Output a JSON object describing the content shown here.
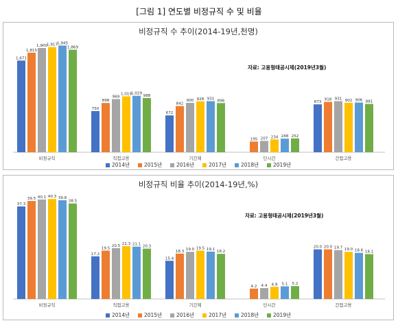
{
  "page": {
    "title": "[그림 1] 연도별 비정규직 수 및 비율"
  },
  "colors": {
    "2014년": "#4472c4",
    "2015년": "#ed7d31",
    "2016년": "#a5a5a5",
    "2017년": "#ffc000",
    "2018년": "#5b9bd5",
    "2019년": "#70ad47"
  },
  "legend": [
    "2014년",
    "2015년",
    "2016년",
    "2017년",
    "2018년",
    "2019년"
  ],
  "chart_data": [
    {
      "type": "bar",
      "title": "비정규직 수 추이(2014-19년,천명)",
      "source": "자료: 고용형태공시제(2019년3월)",
      "categories": [
        "비정규직",
        "직접고용",
        "기간제",
        "단시간",
        "간접고용"
      ],
      "ylim": [
        0,
        2000
      ],
      "grid": false,
      "legend_position": "bottom",
      "series": [
        {
          "name": "2014년",
          "values": [
            1671,
            750,
            672,
            null,
            873
          ]
        },
        {
          "name": "2015년",
          "values": [
            1815,
            898,
            842,
            195,
            918
          ]
        },
        {
          "name": "2016년",
          "values": [
            1900,
            969,
            900,
            207,
            931
          ]
        },
        {
          "name": "2017년",
          "values": [
            1917,
            1019,
            928,
            234,
            902
          ]
        },
        {
          "name": "2018년",
          "values": [
            1945,
            1029,
            931,
            248,
            906
          ]
        },
        {
          "name": "2019년",
          "values": [
            1869,
            988,
            896,
            252,
            881
          ]
        }
      ],
      "labels": [
        [
          "1,671",
          "750",
          "672",
          "",
          "873"
        ],
        [
          "1,815",
          "898",
          "842",
          "195",
          "918"
        ],
        [
          "1,900",
          "969",
          "900",
          "207",
          "931"
        ],
        [
          "1,917",
          "1,019",
          "928",
          "234",
          "902"
        ],
        [
          "1,945",
          "1,029",
          "931",
          "248",
          "906"
        ],
        [
          "1,869",
          "988",
          "896",
          "252",
          "881"
        ]
      ]
    },
    {
      "type": "bar",
      "title": "비정규직 비율 추이(2014-19년,%)",
      "source": "자료: 고용형태공시제(2019년3월)",
      "categories": [
        "비정규직",
        "직접고용",
        "기간제",
        "단시간",
        "간접고용"
      ],
      "ylim": [
        0,
        42
      ],
      "grid": false,
      "legend_position": "bottom",
      "series": [
        {
          "name": "2014년",
          "values": [
            37.3,
            17.2,
            15.4,
            null,
            20.0
          ]
        },
        {
          "name": "2015년",
          "values": [
            39.5,
            19.5,
            18.3,
            4.2,
            20.0
          ]
        },
        {
          "name": "2016년",
          "values": [
            40.1,
            20.5,
            19.0,
            4.4,
            19.7
          ]
        },
        {
          "name": "2017년",
          "values": [
            40.3,
            21.3,
            19.5,
            4.9,
            19.0
          ]
        },
        {
          "name": "2018년",
          "values": [
            39.8,
            21.1,
            19.1,
            5.1,
            18.6
          ]
        },
        {
          "name": "2019년",
          "values": [
            38.5,
            20.3,
            18.2,
            5.2,
            18.1
          ]
        }
      ],
      "labels": [
        [
          "37.3",
          "17.2",
          "15.4",
          "",
          "20.0"
        ],
        [
          "39.5",
          "19.5",
          "18.3",
          "4.2",
          "20.0"
        ],
        [
          "40.1",
          "20.5",
          "19.0",
          "4.4",
          "19.7"
        ],
        [
          "40.3",
          "21.3",
          "19.5",
          "4.9",
          "19.0"
        ],
        [
          "39.8",
          "21.1",
          "19.1",
          "5.1",
          "18.6"
        ],
        [
          "38.5",
          "20.3",
          "18.2",
          "5.2",
          "18.1"
        ]
      ]
    }
  ]
}
